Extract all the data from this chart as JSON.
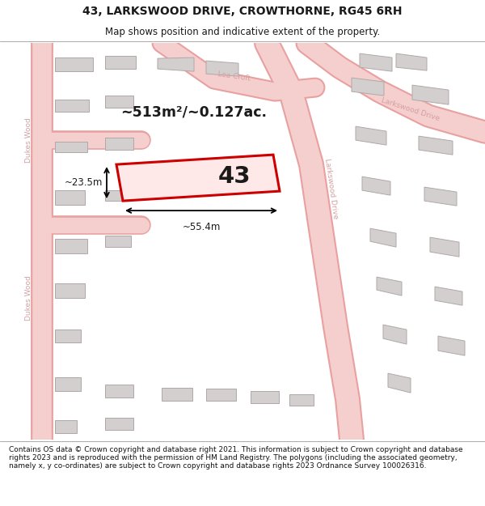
{
  "title_line1": "43, LARKSWOOD DRIVE, CROWTHORNE, RG45 6RH",
  "title_line2": "Map shows position and indicative extent of the property.",
  "map_bg": "#f2f0f0",
  "road_fill": "#f5cece",
  "road_stroke": "#e8a0a0",
  "building_fill": "#d4cfcf",
  "building_stroke": "#b0a8a8",
  "highlight_fill": "#ffe8e8",
  "highlight_stroke": "#cc0000",
  "text_dark": "#1a1a1a",
  "text_road": "#d4a0a0",
  "footer_text": "Contains OS data © Crown copyright and database right 2021. This information is subject to Crown copyright and database rights 2023 and is reproduced with the permission of HM Land Registry. The polygons (including the associated geometry, namely x, y co-ordinates) are subject to Crown copyright and database rights 2023 Ordnance Survey 100026316.",
  "area_label": "~513m²/~0.127ac.",
  "width_label": "~55.4m",
  "height_label": "~23.5m",
  "property_num": "43"
}
